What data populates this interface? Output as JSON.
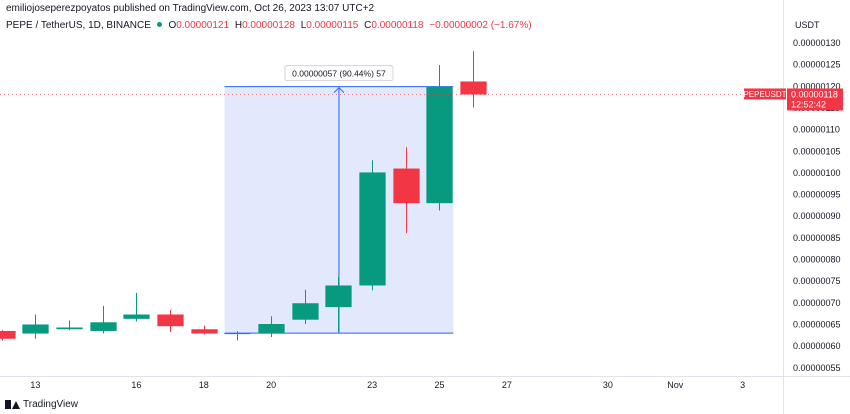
{
  "header": {
    "published": "emiliojoseperezpoyatos published on TradingView.com, Oct 26, 2023 13:07 UTC+2",
    "symbol": "PEPE / TetherUS, 1D, BINANCE",
    "ohlc": [
      {
        "label": "O",
        "value": "0.00000121"
      },
      {
        "label": "H",
        "value": "0.00000128"
      },
      {
        "label": "L",
        "value": "0.00000115"
      },
      {
        "label": "C",
        "value": "0.00000118"
      }
    ],
    "change": "−0.00000002 (−1.67%)"
  },
  "footer": {
    "brand": "TradingView"
  },
  "colors": {
    "up": "#089981",
    "down": "#f23645",
    "measure": "#2962ff",
    "measure_fill": "#dbe3fd"
  },
  "chart_data": {
    "type": "candlestick",
    "currency_label": "USDT",
    "y_ticks": [
      "0.00000130",
      "0.00000125",
      "0.00000120",
      "0.00000115",
      "0.00000110",
      "0.00000105",
      "0.00000100",
      "0.00000095",
      "0.00000090",
      "0.00000085",
      "0.00000080",
      "0.00000075",
      "0.00000070",
      "0.00000065",
      "0.00000060",
      "0.00000055"
    ],
    "ylim": [
      5.3e-07,
      1.315e-06
    ],
    "x_ticks": [
      {
        "day": 13,
        "label": "13"
      },
      {
        "day": 16,
        "label": "16"
      },
      {
        "day": 18,
        "label": "18"
      },
      {
        "day": 20,
        "label": "20"
      },
      {
        "day": 23,
        "label": "23"
      },
      {
        "day": 25,
        "label": "25"
      },
      {
        "day": 27,
        "label": "27"
      },
      {
        "day": 30,
        "label": "30"
      },
      {
        "day": 32,
        "label": "Nov"
      },
      {
        "day": 34,
        "label": "3"
      }
    ],
    "xlim": [
      11.95,
      35.2
    ],
    "candles": [
      {
        "day": 12,
        "open": 6.34e-07,
        "high": 6.36e-07,
        "low": 6.12e-07,
        "close": 6.16e-07
      },
      {
        "day": 13,
        "open": 6.28e-07,
        "high": 6.72e-07,
        "low": 6.16e-07,
        "close": 6.49e-07
      },
      {
        "day": 14,
        "open": 6.38e-07,
        "high": 6.58e-07,
        "low": 6.36e-07,
        "close": 6.42e-07
      },
      {
        "day": 15,
        "open": 6.34e-07,
        "high": 6.92e-07,
        "low": 6.28e-07,
        "close": 6.54e-07
      },
      {
        "day": 16,
        "open": 6.62e-07,
        "high": 7.22e-07,
        "low": 6.56e-07,
        "close": 6.72e-07
      },
      {
        "day": 17,
        "open": 6.72e-07,
        "high": 6.82e-07,
        "low": 6.32e-07,
        "close": 6.45e-07
      },
      {
        "day": 18,
        "open": 6.38e-07,
        "high": 6.46e-07,
        "low": 6.26e-07,
        "close": 6.28e-07
      },
      {
        "day": 19,
        "open": 6.27e-07,
        "high": 6.33e-07,
        "low": 6.12e-07,
        "close": 6.29e-07
      },
      {
        "day": 20,
        "open": 6.29e-07,
        "high": 6.68e-07,
        "low": 6.2e-07,
        "close": 6.5e-07
      },
      {
        "day": 21,
        "open": 6.6e-07,
        "high": 7.29e-07,
        "low": 6.5e-07,
        "close": 6.98e-07
      },
      {
        "day": 22,
        "open": 6.89e-07,
        "high": 7.58e-07,
        "low": 6.32e-07,
        "close": 7.39e-07
      },
      {
        "day": 23,
        "open": 7.39e-07,
        "high": 1.028e-06,
        "low": 7.28e-07,
        "close": 1e-06
      },
      {
        "day": 24,
        "open": 1.009e-06,
        "high": 1.058e-06,
        "low": 8.6e-07,
        "close": 9.29e-07
      },
      {
        "day": 25,
        "open": 9.29e-07,
        "high": 1.248e-06,
        "low": 9.12e-07,
        "close": 1.198e-06
      },
      {
        "day": 26,
        "open": 1.21e-06,
        "high": 1.28e-06,
        "low": 1.15e-06,
        "close": 1.18e-06
      }
    ],
    "measure": {
      "x_from": 19,
      "x_to": 25,
      "price_from": 6.29e-07,
      "price_to": 1.198e-06,
      "label": "0.00000057 (90.44%) 57"
    },
    "last_price": {
      "symbol": "PEPEUSDT",
      "price": "0.00000118",
      "countdown": "12:52:42",
      "value": 1.18e-06
    }
  }
}
